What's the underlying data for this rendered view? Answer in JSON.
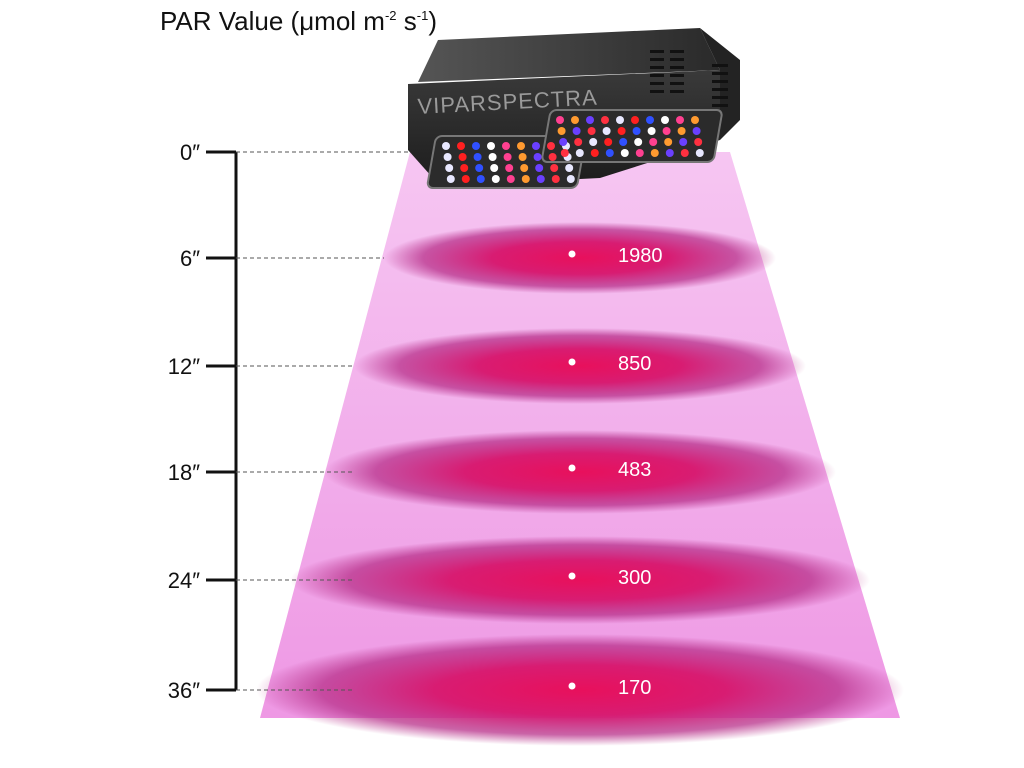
{
  "title": {
    "prefix": "PAR Value (μmol m",
    "exp1": "-2",
    "mid": " s",
    "exp2": "-1",
    "suffix": ")"
  },
  "brand": "VIPARSPECTRA",
  "colors": {
    "beam_light": "#f5c8f0",
    "beam_mid": "#f0a0e6",
    "ellipse_core": "#e0105a",
    "ellipse_edge": "#b8207a",
    "ruler": "#111111",
    "value_text": "#ffffff"
  },
  "measurements": [
    {
      "height": "0″",
      "value": ""
    },
    {
      "height": "6″",
      "value": "1980"
    },
    {
      "height": "12″",
      "value": "850"
    },
    {
      "height": "18″",
      "value": "483"
    },
    {
      "height": "24″",
      "value": "300"
    },
    {
      "height": "36″",
      "value": "170"
    }
  ]
}
